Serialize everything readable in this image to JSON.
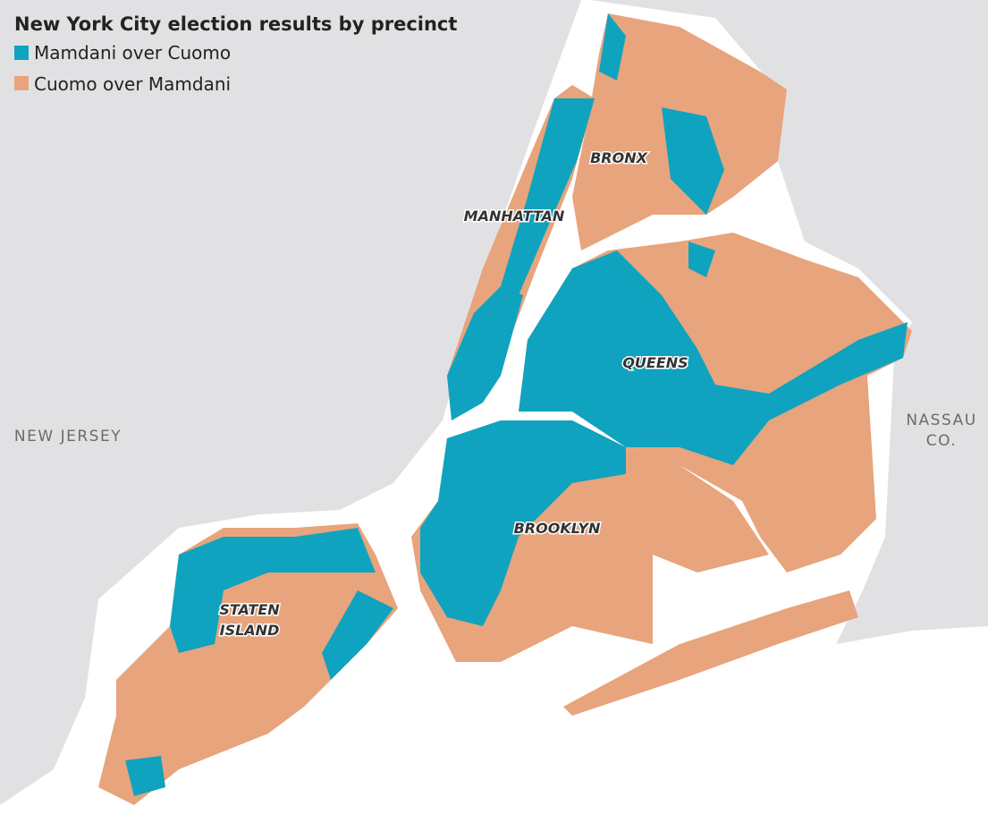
{
  "title": "New York City election results by precinct",
  "legend": [
    {
      "label": "Mamdani over Cuomo",
      "color": "#10a3bf"
    },
    {
      "label": "Cuomo over Mamdani",
      "color": "#e8a47c"
    }
  ],
  "boroughs": [
    {
      "lines": [
        "MANHATTAN"
      ]
    },
    {
      "lines": [
        "BRONX"
      ]
    },
    {
      "lines": [
        "QUEENS"
      ]
    },
    {
      "lines": [
        "BROOKLYN"
      ]
    },
    {
      "lines": [
        "STATEN",
        "ISLAND"
      ]
    }
  ],
  "neighbors": [
    {
      "lines": [
        "NEW JERSEY"
      ]
    },
    {
      "lines": [
        "NASSAU",
        "CO."
      ]
    }
  ]
}
